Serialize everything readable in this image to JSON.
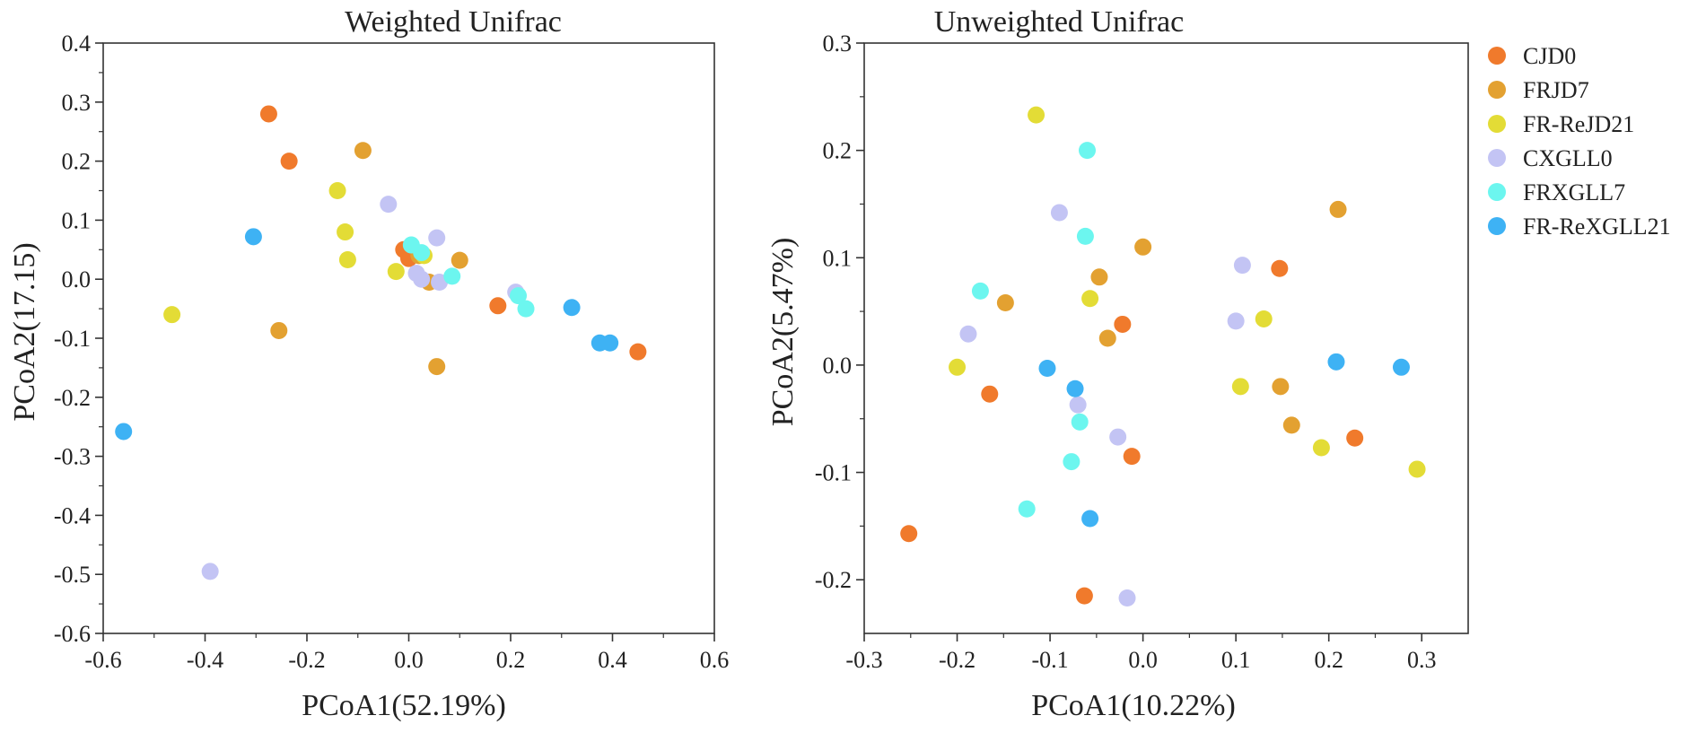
{
  "legend": {
    "items": [
      {
        "label": "CJD0",
        "color": "#F07A2C"
      },
      {
        "label": "FRJD7",
        "color": "#E3A131"
      },
      {
        "label": "FR-ReJD21",
        "color": "#E3DC36"
      },
      {
        "label": "CXGLL0",
        "color": "#C3C4F4"
      },
      {
        "label": "FRXGLL7",
        "color": "#6CF6EF"
      },
      {
        "label": "FR-ReXGLL21",
        "color": "#3EB2F4"
      }
    ]
  },
  "chart_data": [
    {
      "type": "scatter",
      "title": "Weighted Unifrac",
      "xlabel": "PCoA1(52.19%)",
      "ylabel": "PCoA2(17.15)",
      "xlim": [
        -0.6,
        0.6
      ],
      "ylim": [
        -0.6,
        0.4
      ],
      "xticks": [
        -0.6,
        -0.4,
        -0.2,
        0.0,
        0.2,
        0.4,
        0.6
      ],
      "yticks": [
        -0.6,
        -0.5,
        -0.4,
        -0.3,
        -0.2,
        -0.1,
        0.0,
        0.1,
        0.2,
        0.3,
        0.4
      ],
      "xtick_labels": [
        "-0.6",
        "-0.4",
        "-0.2",
        "0.0",
        "0.2",
        "0.4",
        "0.6"
      ],
      "ytick_labels": [
        "-0.6",
        "-0.5",
        "-0.4",
        "-0.3",
        "-0.2",
        "-0.1",
        "0.0",
        "0.1",
        "0.2",
        "0.3",
        "0.4"
      ],
      "series": [
        {
          "name": "CJD0",
          "points": [
            [
              -0.275,
              0.28
            ],
            [
              -0.235,
              0.2
            ],
            [
              -0.01,
              0.05
            ],
            [
              0.0,
              0.035
            ],
            [
              0.175,
              -0.045
            ],
            [
              0.45,
              -0.123
            ]
          ]
        },
        {
          "name": "FRJD7",
          "points": [
            [
              -0.09,
              0.218
            ],
            [
              -0.255,
              -0.087
            ],
            [
              0.1,
              0.032
            ],
            [
              0.04,
              -0.005
            ],
            [
              0.055,
              -0.148
            ],
            [
              0.02,
              0.04
            ]
          ]
        },
        {
          "name": "FR-ReJD21",
          "points": [
            [
              -0.14,
              0.15
            ],
            [
              -0.125,
              0.08
            ],
            [
              -0.12,
              0.033
            ],
            [
              -0.025,
              0.013
            ],
            [
              -0.465,
              -0.06
            ],
            [
              0.03,
              0.04
            ]
          ]
        },
        {
          "name": "CXGLL0",
          "points": [
            [
              -0.04,
              0.127
            ],
            [
              0.055,
              0.07
            ],
            [
              0.015,
              0.01
            ],
            [
              0.025,
              0.0
            ],
            [
              0.06,
              -0.005
            ],
            [
              0.21,
              -0.022
            ],
            [
              -0.39,
              -0.495
            ]
          ]
        },
        {
          "name": "FRXGLL7",
          "points": [
            [
              0.005,
              0.058
            ],
            [
              0.025,
              0.045
            ],
            [
              0.085,
              0.005
            ],
            [
              0.215,
              -0.028
            ],
            [
              0.23,
              -0.05
            ]
          ]
        },
        {
          "name": "FR-ReXGLL21",
          "points": [
            [
              -0.305,
              0.072
            ],
            [
              0.32,
              -0.048
            ],
            [
              0.375,
              -0.108
            ],
            [
              0.395,
              -0.108
            ],
            [
              -0.56,
              -0.258
            ]
          ]
        }
      ]
    },
    {
      "type": "scatter",
      "title": "Unweighted Unifrac",
      "xlabel": "PCoA1(10.22%)",
      "ylabel": "PCoA2(5.47%)",
      "xlim": [
        -0.3,
        0.35
      ],
      "ylim": [
        -0.25,
        0.3
      ],
      "xticks": [
        -0.3,
        -0.2,
        -0.1,
        0.0,
        0.1,
        0.2,
        0.3
      ],
      "yticks": [
        -0.2,
        -0.1,
        0.0,
        0.1,
        0.2,
        0.3
      ],
      "xtick_labels": [
        "-0.3",
        "-0.2",
        "-0.1",
        "0.0",
        "0.1",
        "0.2",
        "0.3"
      ],
      "ytick_labels": [
        "-0.2",
        "-0.1",
        "0.0",
        "0.1",
        "0.2",
        "0.3"
      ],
      "series": [
        {
          "name": "CJD0",
          "points": [
            [
              0.147,
              0.09
            ],
            [
              -0.022,
              0.038
            ],
            [
              -0.165,
              -0.027
            ],
            [
              -0.012,
              -0.085
            ],
            [
              0.228,
              -0.068
            ],
            [
              -0.252,
              -0.157
            ],
            [
              -0.063,
              -0.215
            ]
          ]
        },
        {
          "name": "FRJD7",
          "points": [
            [
              0.21,
              0.145
            ],
            [
              0.0,
              0.11
            ],
            [
              -0.047,
              0.082
            ],
            [
              -0.038,
              0.025
            ],
            [
              -0.148,
              0.058
            ],
            [
              0.148,
              -0.02
            ],
            [
              0.16,
              -0.056
            ]
          ]
        },
        {
          "name": "FR-ReJD21",
          "points": [
            [
              -0.115,
              0.233
            ],
            [
              -0.057,
              0.062
            ],
            [
              0.13,
              0.043
            ],
            [
              -0.2,
              -0.002
            ],
            [
              0.105,
              -0.02
            ],
            [
              0.192,
              -0.077
            ],
            [
              0.295,
              -0.097
            ]
          ]
        },
        {
          "name": "CXGLL0",
          "points": [
            [
              -0.09,
              0.142
            ],
            [
              0.107,
              0.093
            ],
            [
              0.1,
              0.041
            ],
            [
              -0.188,
              0.029
            ],
            [
              -0.07,
              -0.037
            ],
            [
              -0.027,
              -0.067
            ],
            [
              -0.017,
              -0.217
            ]
          ]
        },
        {
          "name": "FRXGLL7",
          "points": [
            [
              -0.06,
              0.2
            ],
            [
              -0.062,
              0.12
            ],
            [
              -0.175,
              0.069
            ],
            [
              -0.068,
              -0.053
            ],
            [
              -0.077,
              -0.09
            ],
            [
              -0.125,
              -0.134
            ]
          ]
        },
        {
          "name": "FR-ReXGLL21",
          "points": [
            [
              0.208,
              0.003
            ],
            [
              0.278,
              -0.002
            ],
            [
              -0.103,
              -0.003
            ],
            [
              -0.073,
              -0.022
            ],
            [
              -0.057,
              -0.143
            ]
          ]
        }
      ]
    }
  ]
}
